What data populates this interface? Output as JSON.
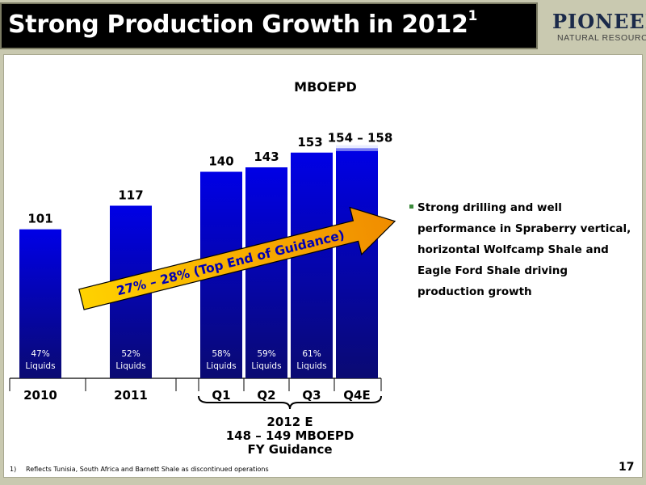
{
  "slide": {
    "title": "Strong Production Growth in 2012",
    "title_superscript": "1",
    "logo_name": "PIONEER",
    "logo_sub": "NATURAL RESOURCES",
    "page_number": "17"
  },
  "bullet": {
    "text": "Strong drilling and well performance in Spraberry vertical, horizontal Wolfcamp Shale and Eagle Ford Shale driving production growth"
  },
  "footnote": {
    "num": "1)",
    "text": "Reflects Tunisia, South Africa and Barnett Shale as discontinued operations"
  },
  "chart_data": {
    "type": "bar",
    "title": "MBOEPD",
    "categories": [
      "2010",
      "2011",
      "Q1",
      "Q2",
      "Q3",
      "Q4E"
    ],
    "values": [
      101,
      117,
      140,
      143,
      153,
      156
    ],
    "value_labels": [
      "101",
      "117",
      "140",
      "143",
      "153",
      "154 – 158"
    ],
    "range_last": [
      154,
      158
    ],
    "inner_labels": [
      [
        "47%",
        "Liquids"
      ],
      [
        "52%",
        "Liquids"
      ],
      [
        "58%",
        "Liquids"
      ],
      [
        "59%",
        "Liquids"
      ],
      [
        "61%",
        "Liquids"
      ],
      null
    ],
    "arrow_label": "27% – 28%  (Top End of Guidance)",
    "group_labels": [
      "2012 E",
      "148 – 149 MBOEPD",
      "FY Guidance"
    ],
    "ylim": [
      0,
      160
    ],
    "colors": {
      "bar_top": "#0000e6",
      "bar_bottom": "#0a0a72",
      "arrow_start": "#ffd200",
      "arrow_end": "#f08c00"
    }
  }
}
